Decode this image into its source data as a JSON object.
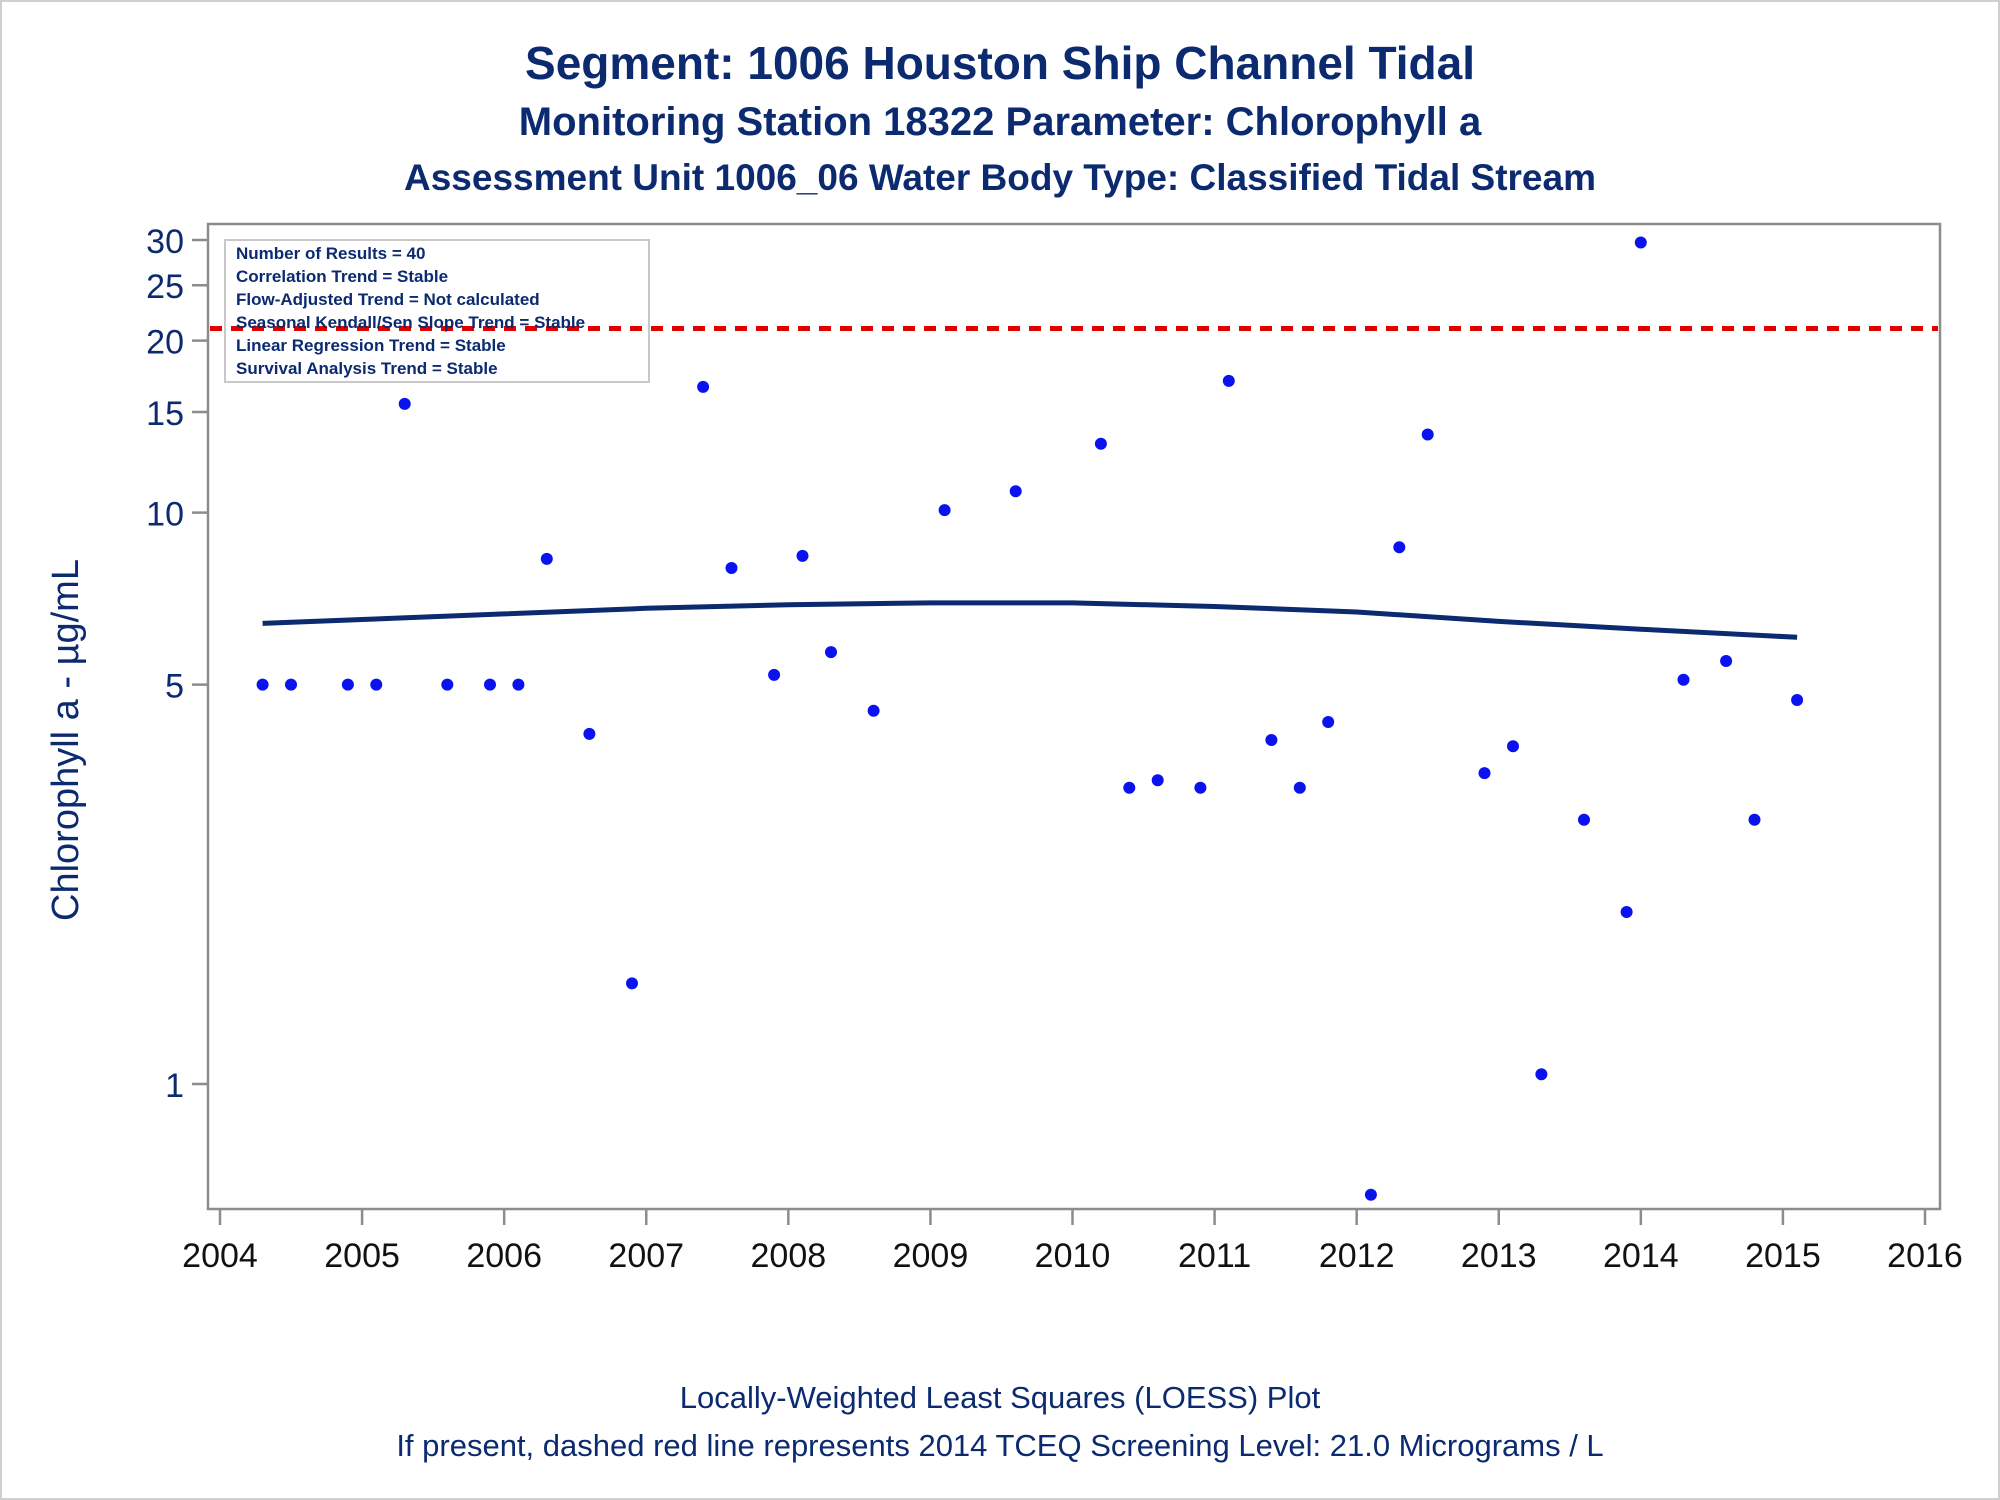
{
  "titles": {
    "line1": "Segment: 1006  Houston Ship Channel Tidal",
    "line2": "Monitoring Station 18322 Parameter: Chlorophyll a",
    "line3": "Assessment Unit 1006_06   Water Body Type: Classified Tidal Stream"
  },
  "stats": [
    "Number of Results = 40",
    "Correlation Trend = Stable",
    "Flow-Adjusted Trend = Not calculated",
    "Seasonal Kendall/Sen Slope Trend = Stable",
    "Linear Regression Trend = Stable",
    "Survival Analysis Trend = Stable"
  ],
  "footnotes": {
    "line1": "Locally-Weighted Least Squares (LOESS) Plot",
    "line2": "If present, dashed red line represents 2014 TCEQ Screening Level: 21.0 Micrograms / L"
  },
  "colors": {
    "text": "#0b2a6f",
    "points": "#0a12f0",
    "loess": "#0b2a6f",
    "screening_line": "#e00000",
    "axis": "#8c8c8c"
  },
  "chart_data": {
    "type": "scatter",
    "ylabel": "Chlorophyll a -  µg/mL",
    "xlabel": "",
    "yscale": "log",
    "ylim": [
      0.68,
      33
    ],
    "xlim": [
      2004,
      2016
    ],
    "yticks": [
      1,
      5,
      10,
      15,
      20,
      25,
      30
    ],
    "xticks": [
      2004,
      2005,
      2006,
      2007,
      2008,
      2009,
      2010,
      2011,
      2012,
      2013,
      2014,
      2015,
      2016
    ],
    "reference_line": {
      "y": 21.0,
      "style": "dashed",
      "color": "#e00000"
    },
    "series": [
      {
        "kind": "points",
        "x": [
          2004.3,
          2004.5,
          2004.9,
          2005.1,
          2005.3,
          2005.6,
          2005.9,
          2006.1,
          2006.3,
          2006.6,
          2006.9,
          2007.4,
          2007.6,
          2007.9,
          2008.1,
          2008.3,
          2008.6,
          2009.1,
          2009.6,
          2010.2,
          2010.4,
          2010.6,
          2010.9,
          2011.1,
          2011.4,
          2011.6,
          2011.8,
          2012.1,
          2012.3,
          2012.5,
          2012.9,
          2013.1,
          2013.3,
          2013.6,
          2013.9,
          2014.0,
          2014.3,
          2014.6,
          2014.8,
          2015.1
        ],
        "y": [
          5.0,
          5.0,
          5.0,
          5.0,
          15.5,
          5.0,
          5.0,
          5.0,
          8.3,
          4.1,
          1.5,
          16.6,
          8.0,
          5.2,
          8.4,
          5.7,
          4.5,
          10.1,
          10.9,
          13.2,
          3.3,
          3.4,
          3.3,
          17.0,
          4.0,
          3.3,
          4.3,
          0.64,
          8.7,
          13.7,
          3.5,
          3.9,
          1.04,
          2.9,
          2.0,
          29.7,
          5.1,
          5.5,
          2.9,
          4.7
        ]
      },
      {
        "kind": "loess",
        "x": [
          2004.3,
          2005.0,
          2006.0,
          2007.0,
          2008.0,
          2009.0,
          2010.0,
          2011.0,
          2012.0,
          2013.0,
          2014.0,
          2015.1
        ],
        "y": [
          6.4,
          6.5,
          6.65,
          6.8,
          6.9,
          6.95,
          6.95,
          6.85,
          6.7,
          6.45,
          6.25,
          6.05
        ]
      }
    ]
  }
}
